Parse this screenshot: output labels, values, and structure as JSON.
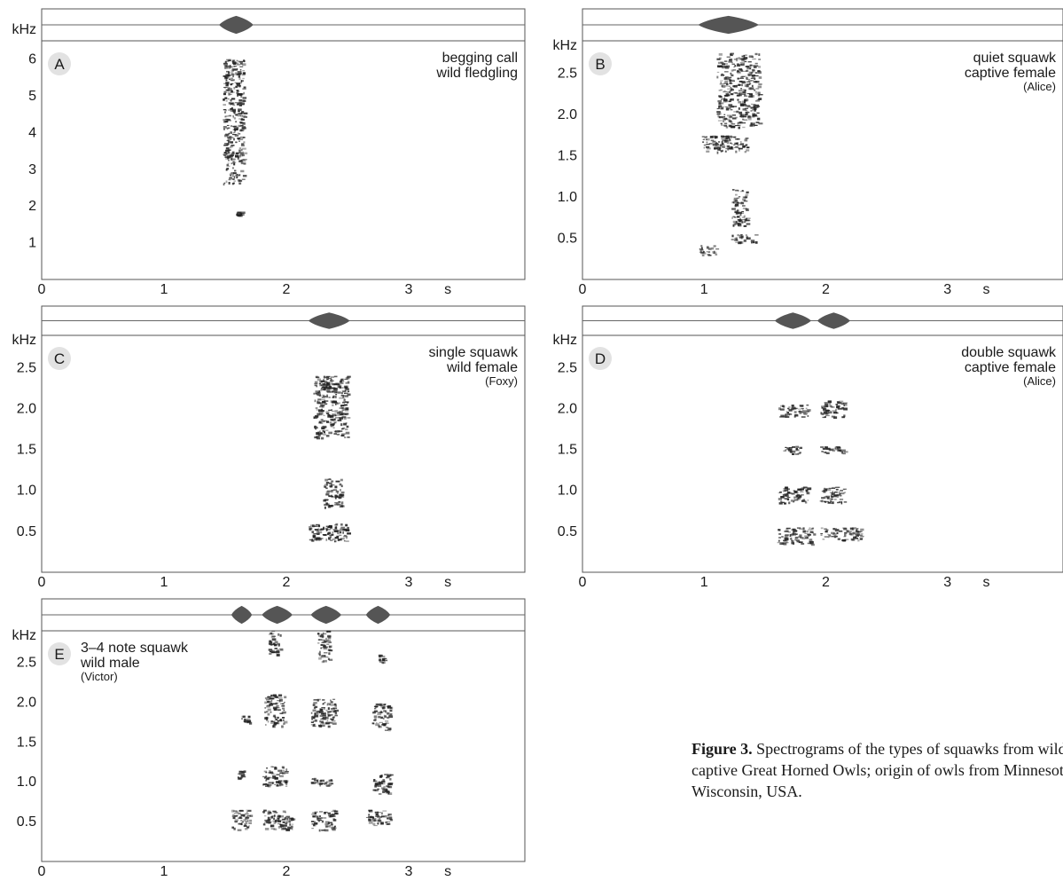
{
  "figure": {
    "caption_bold": "Figure 3.",
    "caption_line1": " Spectrograms of the types of squawks from wild and",
    "caption_line2": "captive Great Horned Owls; origin of owls from Minnesota and",
    "caption_line3": "Wisconsin, USA."
  },
  "chart_data": [
    {
      "type": "heatmap",
      "panel": "A",
      "ylabel": "kHz",
      "xlabel": "s",
      "ylim": [
        0,
        6.4
      ],
      "xlim": [
        0,
        3.95
      ],
      "y_ticks": [
        "1",
        "2",
        "3",
        "4",
        "5",
        "6"
      ],
      "y_tick_values": [
        1,
        2,
        3,
        4,
        5,
        6
      ],
      "x_ticks": [
        "0",
        "1",
        "2",
        "3"
      ],
      "x_tick_values": [
        0,
        1,
        2,
        3
      ],
      "title_lines": [
        "begging call",
        "wild fledgling"
      ],
      "notes": [
        {
          "t0": 1.48,
          "t1": 1.65,
          "f0": 2.6,
          "f1": 6.0
        },
        {
          "t0": 1.58,
          "t1": 1.63,
          "f0": 1.75,
          "f1": 1.85
        }
      ],
      "osc": [
        {
          "t0": 1.45,
          "t1": 1.73
        }
      ]
    },
    {
      "type": "heatmap",
      "panel": "B",
      "ylabel": "kHz",
      "xlabel": "s",
      "ylim": [
        0,
        2.85
      ],
      "xlim": [
        0,
        3.95
      ],
      "y_ticks": [
        "0.5",
        "1.0",
        "1.5",
        "2.0",
        "2.5"
      ],
      "y_tick_values": [
        0.5,
        1.0,
        1.5,
        2.0,
        2.5
      ],
      "x_ticks": [
        "0",
        "1",
        "2",
        "3"
      ],
      "x_tick_values": [
        0,
        1,
        2,
        3
      ],
      "title_lines": [
        "quiet squawk",
        "captive female"
      ],
      "subtitle": "(Alice)",
      "notes": [
        {
          "t0": 1.1,
          "t1": 1.45,
          "f0": 1.85,
          "f1": 2.75
        },
        {
          "t0": 0.98,
          "t1": 1.35,
          "f0": 1.55,
          "f1": 1.75
        },
        {
          "t0": 1.22,
          "t1": 1.35,
          "f0": 0.65,
          "f1": 1.1
        },
        {
          "t0": 0.95,
          "t1": 1.1,
          "f0": 0.3,
          "f1": 0.42
        },
        {
          "t0": 1.22,
          "t1": 1.42,
          "f0": 0.45,
          "f1": 0.55
        }
      ],
      "osc": [
        {
          "t0": 0.95,
          "t1": 1.45
        }
      ]
    },
    {
      "type": "heatmap",
      "panel": "C",
      "ylabel": "kHz",
      "xlabel": "s",
      "ylim": [
        0,
        2.85
      ],
      "xlim": [
        0,
        3.95
      ],
      "y_ticks": [
        "0.5",
        "1.0",
        "1.5",
        "2.0",
        "2.5"
      ],
      "y_tick_values": [
        0.5,
        1.0,
        1.5,
        2.0,
        2.5
      ],
      "x_ticks": [
        "0",
        "1",
        "2",
        "3"
      ],
      "x_tick_values": [
        0,
        1,
        2,
        3
      ],
      "title_lines": [
        "single squawk",
        "wild female"
      ],
      "subtitle": "(Foxy)",
      "notes": [
        {
          "t0": 2.22,
          "t1": 2.5,
          "f0": 1.65,
          "f1": 2.4
        },
        {
          "t0": 2.3,
          "t1": 2.45,
          "f0": 0.8,
          "f1": 1.15
        },
        {
          "t0": 2.18,
          "t1": 2.5,
          "f0": 0.38,
          "f1": 0.6
        }
      ],
      "osc": [
        {
          "t0": 2.18,
          "t1": 2.52
        }
      ]
    },
    {
      "type": "heatmap",
      "panel": "D",
      "ylabel": "kHz",
      "xlabel": "s",
      "ylim": [
        0,
        2.85
      ],
      "xlim": [
        0,
        3.95
      ],
      "y_ticks": [
        "0.5",
        "1.0",
        "1.5",
        "2.0",
        "2.5"
      ],
      "y_tick_values": [
        0.5,
        1.0,
        1.5,
        2.0,
        2.5
      ],
      "x_ticks": [
        "0",
        "1",
        "2",
        "3"
      ],
      "x_tick_values": [
        0,
        1,
        2,
        3
      ],
      "title_lines": [
        "double squawk",
        "captive female"
      ],
      "subtitle": "(Alice)",
      "notes": [
        {
          "t0": 1.6,
          "t1": 1.85,
          "f0": 1.9,
          "f1": 2.05
        },
        {
          "t0": 1.95,
          "t1": 2.15,
          "f0": 1.9,
          "f1": 2.1
        },
        {
          "t0": 1.65,
          "t1": 1.8,
          "f0": 1.45,
          "f1": 1.55
        },
        {
          "t0": 1.95,
          "t1": 2.15,
          "f0": 1.45,
          "f1": 1.55
        },
        {
          "t0": 1.6,
          "t1": 1.85,
          "f0": 0.85,
          "f1": 1.05
        },
        {
          "t0": 1.95,
          "t1": 2.15,
          "f0": 0.85,
          "f1": 1.05
        },
        {
          "t0": 1.6,
          "t1": 1.9,
          "f0": 0.35,
          "f1": 0.55
        },
        {
          "t0": 1.95,
          "t1": 2.3,
          "f0": 0.4,
          "f1": 0.55
        }
      ],
      "osc": [
        {
          "t0": 1.58,
          "t1": 1.88
        },
        {
          "t0": 1.93,
          "t1": 2.2
        }
      ]
    },
    {
      "type": "heatmap",
      "panel": "E",
      "ylabel": "kHz",
      "xlabel": "s",
      "ylim": [
        0,
        2.85
      ],
      "xlim": [
        0,
        3.95
      ],
      "y_ticks": [
        "0.5",
        "1.0",
        "1.5",
        "2.0",
        "2.5"
      ],
      "y_tick_values": [
        0.5,
        1.0,
        1.5,
        2.0,
        2.5
      ],
      "x_ticks": [
        "0",
        "1",
        "2",
        "3"
      ],
      "x_tick_values": [
        0,
        1,
        2,
        3
      ],
      "title_lines": [
        "3–4 note squawk",
        "wild male"
      ],
      "subtitle": "(Victor)",
      "notes": [
        {
          "t0": 1.55,
          "t1": 1.7,
          "f0": 0.4,
          "f1": 0.65
        },
        {
          "t0": 1.6,
          "t1": 1.65,
          "f0": 1.05,
          "f1": 1.15
        },
        {
          "t0": 1.62,
          "t1": 1.7,
          "f0": 1.75,
          "f1": 1.85
        },
        {
          "t0": 1.8,
          "t1": 2.05,
          "f0": 0.4,
          "f1": 0.65
        },
        {
          "t0": 1.8,
          "t1": 2.0,
          "f0": 0.95,
          "f1": 1.2
        },
        {
          "t0": 1.82,
          "t1": 1.98,
          "f0": 1.7,
          "f1": 2.1
        },
        {
          "t0": 1.85,
          "t1": 1.95,
          "f0": 2.6,
          "f1": 2.9
        },
        {
          "t0": 2.2,
          "t1": 2.4,
          "f0": 0.4,
          "f1": 0.65
        },
        {
          "t0": 2.2,
          "t1": 2.38,
          "f0": 0.95,
          "f1": 1.05
        },
        {
          "t0": 2.2,
          "t1": 2.4,
          "f0": 1.7,
          "f1": 2.05
        },
        {
          "t0": 2.25,
          "t1": 2.35,
          "f0": 2.5,
          "f1": 2.9
        },
        {
          "t0": 2.65,
          "t1": 2.85,
          "f0": 0.45,
          "f1": 0.65
        },
        {
          "t0": 2.7,
          "t1": 2.85,
          "f0": 0.85,
          "f1": 1.1
        },
        {
          "t0": 2.7,
          "t1": 2.85,
          "f0": 1.65,
          "f1": 2.0
        },
        {
          "t0": 2.75,
          "t1": 2.8,
          "f0": 2.5,
          "f1": 2.6
        }
      ],
      "osc": [
        {
          "t0": 1.55,
          "t1": 1.72
        },
        {
          "t0": 1.8,
          "t1": 2.05
        },
        {
          "t0": 2.2,
          "t1": 2.45
        },
        {
          "t0": 2.65,
          "t1": 2.85
        }
      ]
    }
  ]
}
